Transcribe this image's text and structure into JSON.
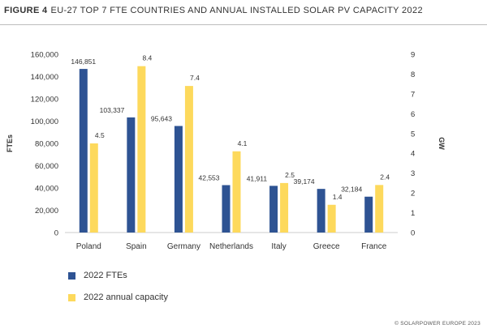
{
  "figure": {
    "number": "FIGURE 4",
    "title": "EU-27 TOP 7 FTE COUNTRIES AND ANNUAL INSTALLED SOLAR PV CAPACITY 2022"
  },
  "credit": "© SOLARPOWER EUROPE 2023",
  "colors": {
    "ftes": "#2E5393",
    "capacity": "#FDD95C",
    "axis": "#cccccc",
    "text": "#333333"
  },
  "chart_data": {
    "type": "bar",
    "title": "EU-27 TOP 7 FTE COUNTRIES AND ANNUAL INSTALLED SOLAR PV CAPACITY 2022",
    "categories": [
      "Poland",
      "Spain",
      "Germany",
      "Netherlands",
      "Italy",
      "Greece",
      "France"
    ],
    "y_left": {
      "label": "FTEs",
      "lim": [
        0,
        160000
      ],
      "ticks": [
        "0",
        "20,000",
        "40,000",
        "60,000",
        "80,000",
        "100,000",
        "120,000",
        "140,000",
        "160,000"
      ]
    },
    "y_right": {
      "label": "GW",
      "lim": [
        0,
        9
      ],
      "ticks": [
        "0",
        "1",
        "2",
        "3",
        "4",
        "5",
        "6",
        "7",
        "8",
        "9"
      ]
    },
    "series": [
      {
        "name": "2022 FTEs",
        "axis": "left",
        "values": [
          146851,
          103337,
          95643,
          42553,
          41911,
          39174,
          32184
        ],
        "labels": [
          "146,851",
          "103,337",
          "95,643",
          "42,553",
          "41,911",
          "39,174",
          "32,184"
        ]
      },
      {
        "name": "2022 annual capacity",
        "axis": "right",
        "values": [
          4.5,
          8.4,
          7.4,
          4.1,
          2.5,
          1.4,
          2.4
        ],
        "labels": [
          "4.5",
          "8.4",
          "7.4",
          "4.1",
          "2.5",
          "1.4",
          "2.4"
        ]
      }
    ],
    "grid": false,
    "legend": "bottom-left"
  }
}
